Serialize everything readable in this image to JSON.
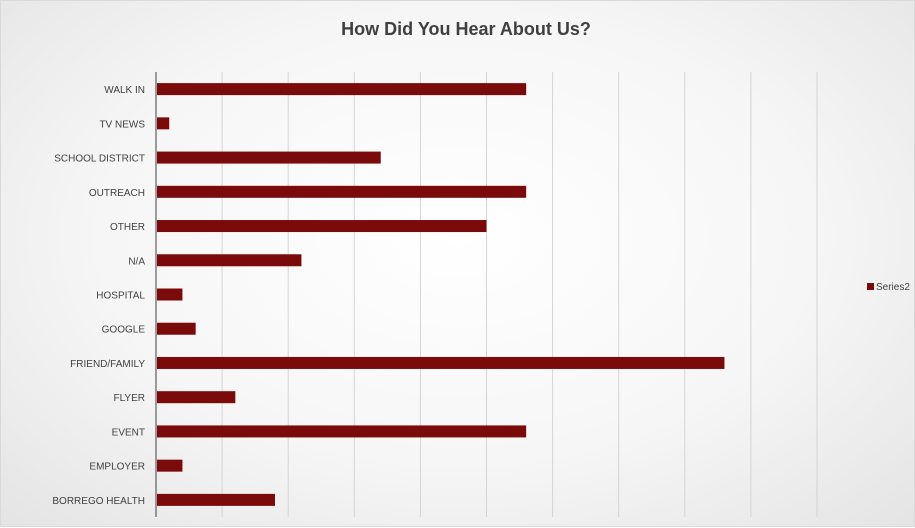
{
  "chart_data": {
    "type": "bar",
    "orientation": "horizontal",
    "title": "How Did You Hear About Us?",
    "categories": [
      "WALK IN",
      "TV NEWS",
      "SCHOOL DISTRICT",
      "OUTREACH",
      "OTHER",
      "N/A",
      "HOSPITAL",
      "GOOGLE",
      "FRIEND/FAMILY",
      "FLYER",
      "EVENT",
      "EMPLOYER",
      "BORREGO HEALTH"
    ],
    "series": [
      {
        "name": "Series2",
        "values": [
          28,
          1,
          17,
          28,
          25,
          11,
          2,
          3,
          43,
          6,
          28,
          2,
          9
        ]
      }
    ],
    "xlim": [
      0,
      50
    ],
    "grid": true,
    "legend": "right",
    "colors": {
      "bar": "#7b0a0a",
      "grid": "#d4d4d4",
      "axis": "#404040"
    }
  }
}
